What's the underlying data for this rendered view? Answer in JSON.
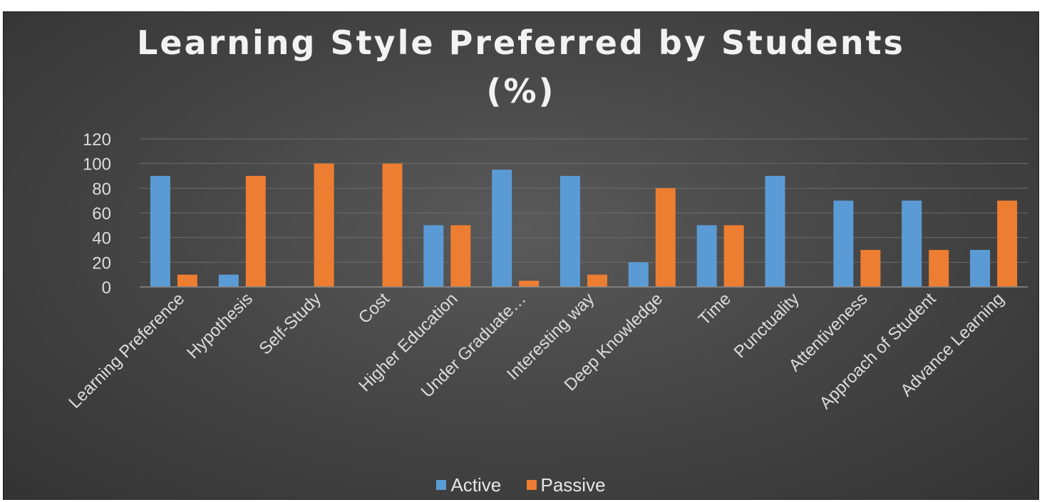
{
  "chart_data": {
    "type": "bar",
    "title": "Learning Style Preferred by Students (%)",
    "xlabel": "",
    "ylabel": "",
    "ylim": [
      0,
      120
    ],
    "yticks": [
      0,
      20,
      40,
      60,
      80,
      100,
      120
    ],
    "grid": true,
    "legend_position": "bottom",
    "categories": [
      "Learning Preference",
      "Hypothesis",
      "Self-Study",
      "Cost",
      "Higher Education",
      "Under Graduate…",
      "Interesting way",
      "Deep Knowledge",
      "Time",
      "Punctuality",
      "Attentiveness",
      "Approach of Student",
      "Advance Learning"
    ],
    "series": [
      {
        "name": "Active",
        "color": "#5b9bd5",
        "values": [
          90,
          10,
          0,
          0,
          50,
          95,
          90,
          20,
          50,
          90,
          70,
          70,
          30
        ]
      },
      {
        "name": "Passive",
        "color": "#ed7d31",
        "values": [
          10,
          90,
          100,
          100,
          50,
          5,
          10,
          80,
          50,
          0,
          30,
          30,
          70
        ]
      }
    ]
  }
}
